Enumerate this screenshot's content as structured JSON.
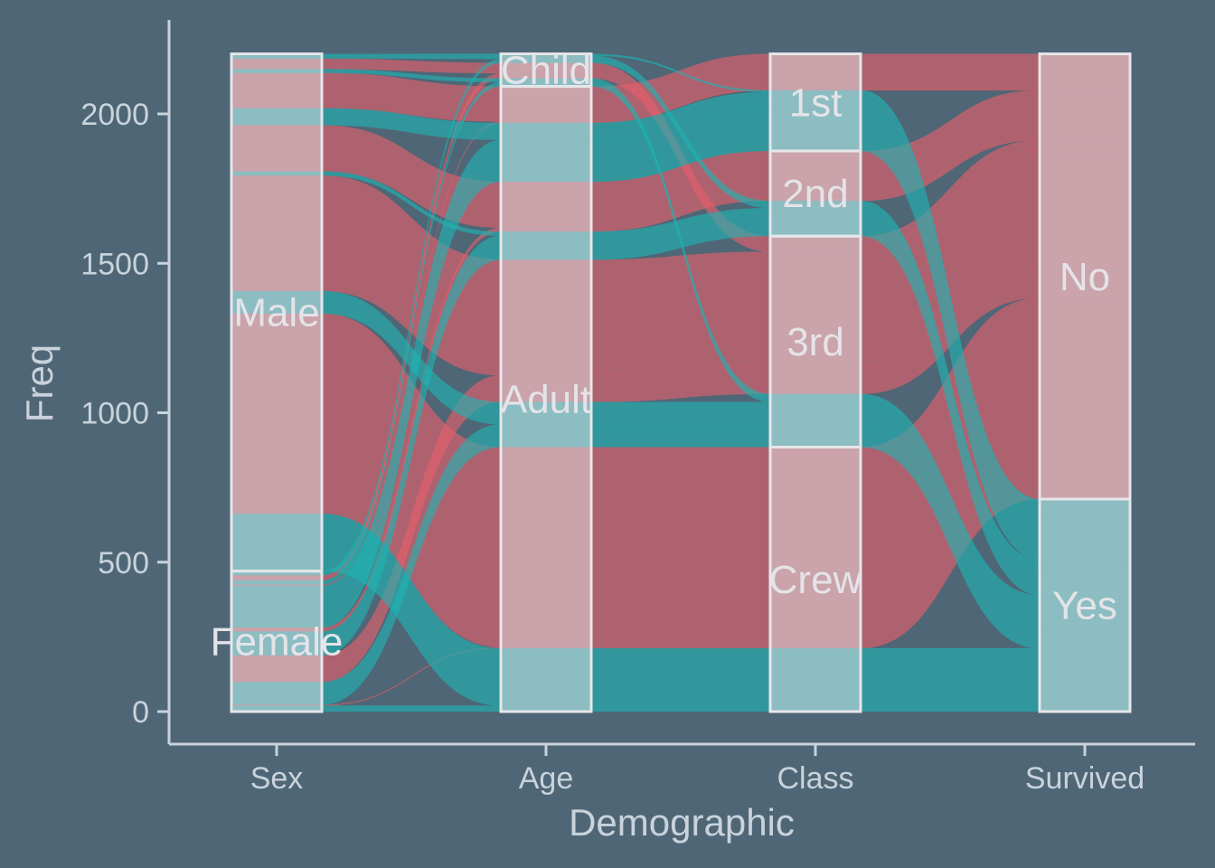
{
  "colors": {
    "background": "#4f6676",
    "axis": "#c9d3dc",
    "flow_no": "#e8606a",
    "flow_yes": "#1fb5b3",
    "stratum_fill": "#e5e3e8",
    "stratum_stroke": "#e6e6ea",
    "stratum_label": "#e4e4e8"
  },
  "chart_data": {
    "type": "alluvial",
    "xlabel": "Demographic",
    "ylabel": "Freq",
    "ylim": [
      0,
      2201
    ],
    "yticks": [
      0,
      500,
      1000,
      1500,
      2000
    ],
    "ytick_labels": [
      "0",
      "500",
      "1000",
      "1500",
      "2000"
    ],
    "grid": false,
    "legend": "none",
    "fill_variable": "Survived",
    "axes": [
      {
        "name": "Sex",
        "strata": [
          {
            "label": "Female",
            "value": 470
          },
          {
            "label": "Male",
            "value": 1731
          }
        ]
      },
      {
        "name": "Age",
        "strata": [
          {
            "label": "Adult",
            "value": 2092
          },
          {
            "label": "Child",
            "value": 109
          }
        ]
      },
      {
        "name": "Class",
        "strata": [
          {
            "label": "Crew",
            "value": 885
          },
          {
            "label": "3rd",
            "value": 706
          },
          {
            "label": "2nd",
            "value": 285
          },
          {
            "label": "1st",
            "value": 325
          }
        ]
      },
      {
        "name": "Survived",
        "strata": [
          {
            "label": "Yes",
            "value": 711
          },
          {
            "label": "No",
            "value": 1490
          }
        ]
      }
    ],
    "flows": [
      {
        "Sex": "Male",
        "Age": "Child",
        "Class": "1st",
        "Survived": "No",
        "Freq": 0
      },
      {
        "Sex": "Female",
        "Age": "Child",
        "Class": "1st",
        "Survived": "No",
        "Freq": 0
      },
      {
        "Sex": "Male",
        "Age": "Adult",
        "Class": "1st",
        "Survived": "No",
        "Freq": 118
      },
      {
        "Sex": "Female",
        "Age": "Adult",
        "Class": "1st",
        "Survived": "No",
        "Freq": 4
      },
      {
        "Sex": "Male",
        "Age": "Child",
        "Class": "2nd",
        "Survived": "No",
        "Freq": 0
      },
      {
        "Sex": "Female",
        "Age": "Child",
        "Class": "2nd",
        "Survived": "No",
        "Freq": 0
      },
      {
        "Sex": "Male",
        "Age": "Adult",
        "Class": "2nd",
        "Survived": "No",
        "Freq": 154
      },
      {
        "Sex": "Female",
        "Age": "Adult",
        "Class": "2nd",
        "Survived": "No",
        "Freq": 13
      },
      {
        "Sex": "Male",
        "Age": "Child",
        "Class": "3rd",
        "Survived": "No",
        "Freq": 35
      },
      {
        "Sex": "Female",
        "Age": "Child",
        "Class": "3rd",
        "Survived": "No",
        "Freq": 17
      },
      {
        "Sex": "Male",
        "Age": "Adult",
        "Class": "3rd",
        "Survived": "No",
        "Freq": 387
      },
      {
        "Sex": "Female",
        "Age": "Adult",
        "Class": "3rd",
        "Survived": "No",
        "Freq": 89
      },
      {
        "Sex": "Male",
        "Age": "Child",
        "Class": "Crew",
        "Survived": "No",
        "Freq": 0
      },
      {
        "Sex": "Female",
        "Age": "Child",
        "Class": "Crew",
        "Survived": "No",
        "Freq": 0
      },
      {
        "Sex": "Male",
        "Age": "Adult",
        "Class": "Crew",
        "Survived": "No",
        "Freq": 670
      },
      {
        "Sex": "Female",
        "Age": "Adult",
        "Class": "Crew",
        "Survived": "No",
        "Freq": 3
      },
      {
        "Sex": "Male",
        "Age": "Child",
        "Class": "1st",
        "Survived": "Yes",
        "Freq": 5
      },
      {
        "Sex": "Female",
        "Age": "Child",
        "Class": "1st",
        "Survived": "Yes",
        "Freq": 1
      },
      {
        "Sex": "Male",
        "Age": "Adult",
        "Class": "1st",
        "Survived": "Yes",
        "Freq": 57
      },
      {
        "Sex": "Female",
        "Age": "Adult",
        "Class": "1st",
        "Survived": "Yes",
        "Freq": 140
      },
      {
        "Sex": "Male",
        "Age": "Child",
        "Class": "2nd",
        "Survived": "Yes",
        "Freq": 11
      },
      {
        "Sex": "Female",
        "Age": "Child",
        "Class": "2nd",
        "Survived": "Yes",
        "Freq": 13
      },
      {
        "Sex": "Male",
        "Age": "Adult",
        "Class": "2nd",
        "Survived": "Yes",
        "Freq": 14
      },
      {
        "Sex": "Female",
        "Age": "Adult",
        "Class": "2nd",
        "Survived": "Yes",
        "Freq": 80
      },
      {
        "Sex": "Male",
        "Age": "Child",
        "Class": "3rd",
        "Survived": "Yes",
        "Freq": 13
      },
      {
        "Sex": "Female",
        "Age": "Child",
        "Class": "3rd",
        "Survived": "Yes",
        "Freq": 14
      },
      {
        "Sex": "Male",
        "Age": "Adult",
        "Class": "3rd",
        "Survived": "Yes",
        "Freq": 75
      },
      {
        "Sex": "Female",
        "Age": "Adult",
        "Class": "3rd",
        "Survived": "Yes",
        "Freq": 76
      },
      {
        "Sex": "Male",
        "Age": "Child",
        "Class": "Crew",
        "Survived": "Yes",
        "Freq": 0
      },
      {
        "Sex": "Female",
        "Age": "Child",
        "Class": "Crew",
        "Survived": "Yes",
        "Freq": 0
      },
      {
        "Sex": "Male",
        "Age": "Adult",
        "Class": "Crew",
        "Survived": "Yes",
        "Freq": 192
      },
      {
        "Sex": "Female",
        "Age": "Adult",
        "Class": "Crew",
        "Survived": "Yes",
        "Freq": 20
      }
    ]
  }
}
